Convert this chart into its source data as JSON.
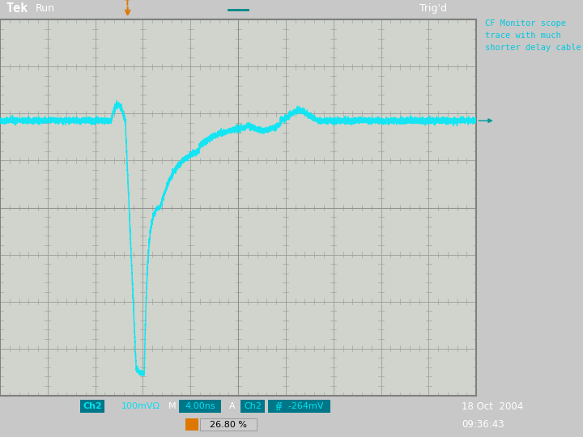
{
  "fig_bg": "#c8c8c8",
  "screen_bg": "#d0d4cc",
  "grid_color": "#a0a4a0",
  "grid_minor_color": "#b0b4b0",
  "trace_color": "#00e8f8",
  "top_bar_bg": "#888888",
  "bot_bar_bg": "#505050",
  "white_text": "#ffffff",
  "black_text": "#000000",
  "orange_color": "#dd7700",
  "cyan_text": "#00e0f0",
  "cyan_box_bg": "#008090",
  "right_panel_bg": "#c8c8c8",
  "arrow_color": "#008888",
  "tek_text": "Tek",
  "run_text": "Run",
  "trig_text": "Trig'd",
  "ch2_label": "2",
  "annotation": "CF Monitor scope\ntrace with much\nshorter delay cable.",
  "date_text": "18 Oct  2004",
  "time_text": "09:36:43",
  "percent_text": "26.80 %",
  "status_ch2": "Ch2",
  "status_scale": "100mVΩ",
  "status_m": "M",
  "status_timebase": "4.00ns",
  "status_a": "A",
  "status_ch2b": "Ch2",
  "status_cursor": "∯  -264mV",
  "n_hdiv": 10,
  "n_vdiv": 8,
  "baseline_div": 5.85,
  "trigger_xdiv": 2.68,
  "spike_peak_div": 6.25,
  "min_div": 0.55,
  "noise_amp": 0.03
}
